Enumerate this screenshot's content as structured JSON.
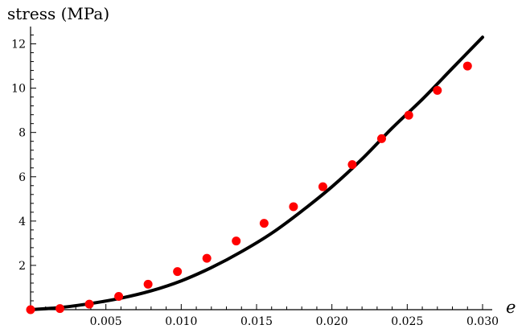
{
  "chart_data": {
    "type": "scatter",
    "xlabel": "e",
    "ylabel": "stress (MPa)",
    "xlim": [
      0,
      0.03
    ],
    "ylim": [
      0,
      12.6
    ],
    "x_ticks": [
      0.005,
      0.01,
      0.015,
      0.02,
      0.025,
      0.03
    ],
    "x_tick_labels": [
      "0.005",
      "0.010",
      "0.015",
      "0.020",
      "0.025",
      "0.030"
    ],
    "y_ticks": [
      2,
      4,
      6,
      8,
      10,
      12
    ],
    "y_tick_labels": [
      "2",
      "4",
      "6",
      "8",
      "10",
      "12"
    ],
    "grid": false,
    "series": [
      {
        "kind": "scatter",
        "color": "#ff0000",
        "x": [
          0.0,
          0.00195,
          0.0039,
          0.00585,
          0.0078,
          0.00975,
          0.0117,
          0.01365,
          0.0155,
          0.01745,
          0.0194,
          0.02135,
          0.0233,
          0.0251,
          0.027,
          0.029
        ],
        "y": [
          0.0,
          0.05,
          0.25,
          0.6,
          1.15,
          1.72,
          2.32,
          3.1,
          3.9,
          4.65,
          5.55,
          6.55,
          7.72,
          8.78,
          9.9,
          11.0
        ]
      },
      {
        "kind": "line",
        "color": "#000000",
        "x": [
          0.0,
          0.002,
          0.004,
          0.006,
          0.008,
          0.01,
          0.012,
          0.014,
          0.016,
          0.018,
          0.02,
          0.022,
          0.024,
          0.026,
          0.028,
          0.03
        ],
        "y": [
          0.0,
          0.1,
          0.28,
          0.52,
          0.85,
          1.3,
          1.9,
          2.62,
          3.45,
          4.45,
          5.55,
          6.8,
          8.2,
          9.5,
          10.9,
          12.3
        ]
      }
    ]
  }
}
